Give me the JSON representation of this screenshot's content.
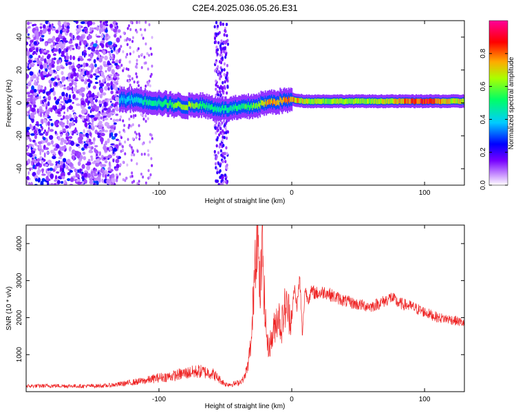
{
  "figure_title": "C2E4.2025.036.05.26.E31",
  "chart_data": [
    {
      "type": "heatmap",
      "xlabel": "Height of straight line (km)",
      "ylabel": "Frequency (Hz)",
      "xlim": [
        -200,
        130
      ],
      "ylim": [
        -50,
        50
      ],
      "x_ticks": [
        -100,
        0,
        100
      ],
      "x_tick_labels": [
        "-100",
        "0",
        "100"
      ],
      "y_ticks": [
        -40,
        -20,
        0,
        20,
        40
      ],
      "y_tick_labels": [
        "-40",
        "-20",
        "0",
        "20",
        "40"
      ],
      "colorbar": {
        "label": "Normalized spectral amplitude",
        "range": [
          0,
          1
        ],
        "ticks": [
          0.0,
          0.2,
          0.4,
          0.6,
          0.8
        ],
        "tick_labels": [
          "0.0",
          "0.2",
          "0.4",
          "0.6",
          "0.8"
        ],
        "colors": [
          "#ffffff",
          "#9933ff",
          "#0000ff",
          "#00ccff",
          "#00ff66",
          "#ccff00",
          "#ffaa00",
          "#ff0000",
          "#ff0099"
        ]
      },
      "trace": {
        "x": [
          -130,
          -120,
          -110,
          -100,
          -90,
          -80,
          -70,
          -60,
          -50,
          -40,
          -30,
          -20,
          -10,
          0,
          10,
          20,
          40,
          60,
          80,
          100,
          120,
          130
        ],
        "frequency": [
          2,
          2,
          1,
          0,
          -1,
          -2,
          -1,
          -3,
          -4,
          -3,
          -2,
          0,
          1,
          2,
          1,
          1,
          1,
          1,
          1,
          1,
          1,
          1
        ],
        "amplitude": [
          0.4,
          0.4,
          0.5,
          0.5,
          0.6,
          0.7,
          0.6,
          0.5,
          0.5,
          0.55,
          0.6,
          0.75,
          0.8,
          0.8,
          0.7,
          0.65,
          0.65,
          0.65,
          0.75,
          0.95,
          0.7,
          0.7
        ],
        "noise_region_x": [
          -200,
          -130
        ],
        "noise_stripe_x": [
          -58,
          -48
        ]
      }
    },
    {
      "type": "line",
      "xlabel": "Height of straight line (km)",
      "ylabel": "SNR (10 * v/v)",
      "xlim": [
        -200,
        130
      ],
      "ylim": [
        0,
        4500
      ],
      "x_ticks": [
        -100,
        0,
        100
      ],
      "x_tick_labels": [
        "-100",
        "0",
        "100"
      ],
      "y_ticks": [
        1000,
        2000,
        3000,
        4000
      ],
      "y_tick_labels": [
        "1000",
        "2000",
        "3000",
        "4000"
      ],
      "series": [
        {
          "color": "#ee2222",
          "x": [
            -200,
            -180,
            -160,
            -140,
            -130,
            -120,
            -110,
            -100,
            -90,
            -80,
            -70,
            -60,
            -50,
            -45,
            -40,
            -36,
            -33,
            -30,
            -28,
            -26,
            -24,
            -22,
            -20,
            -18,
            -15,
            -12,
            -10,
            -8,
            -5,
            -3,
            0,
            2,
            4,
            6,
            8,
            10,
            12,
            15,
            20,
            25,
            30,
            40,
            50,
            60,
            70,
            75,
            80,
            90,
            100,
            110,
            120,
            130
          ],
          "y": [
            150,
            160,
            150,
            160,
            200,
            250,
            300,
            380,
            420,
            500,
            550,
            500,
            200,
            200,
            240,
            350,
            700,
            1500,
            3500,
            4500,
            2600,
            3900,
            2000,
            1200,
            1400,
            1900,
            2100,
            1700,
            2300,
            2200,
            2000,
            2800,
            2300,
            3100,
            1500,
            2800,
            2500,
            2700,
            2650,
            2700,
            2600,
            2450,
            2350,
            2300,
            2450,
            2550,
            2400,
            2300,
            2150,
            2000,
            1950,
            1850
          ]
        }
      ]
    }
  ]
}
